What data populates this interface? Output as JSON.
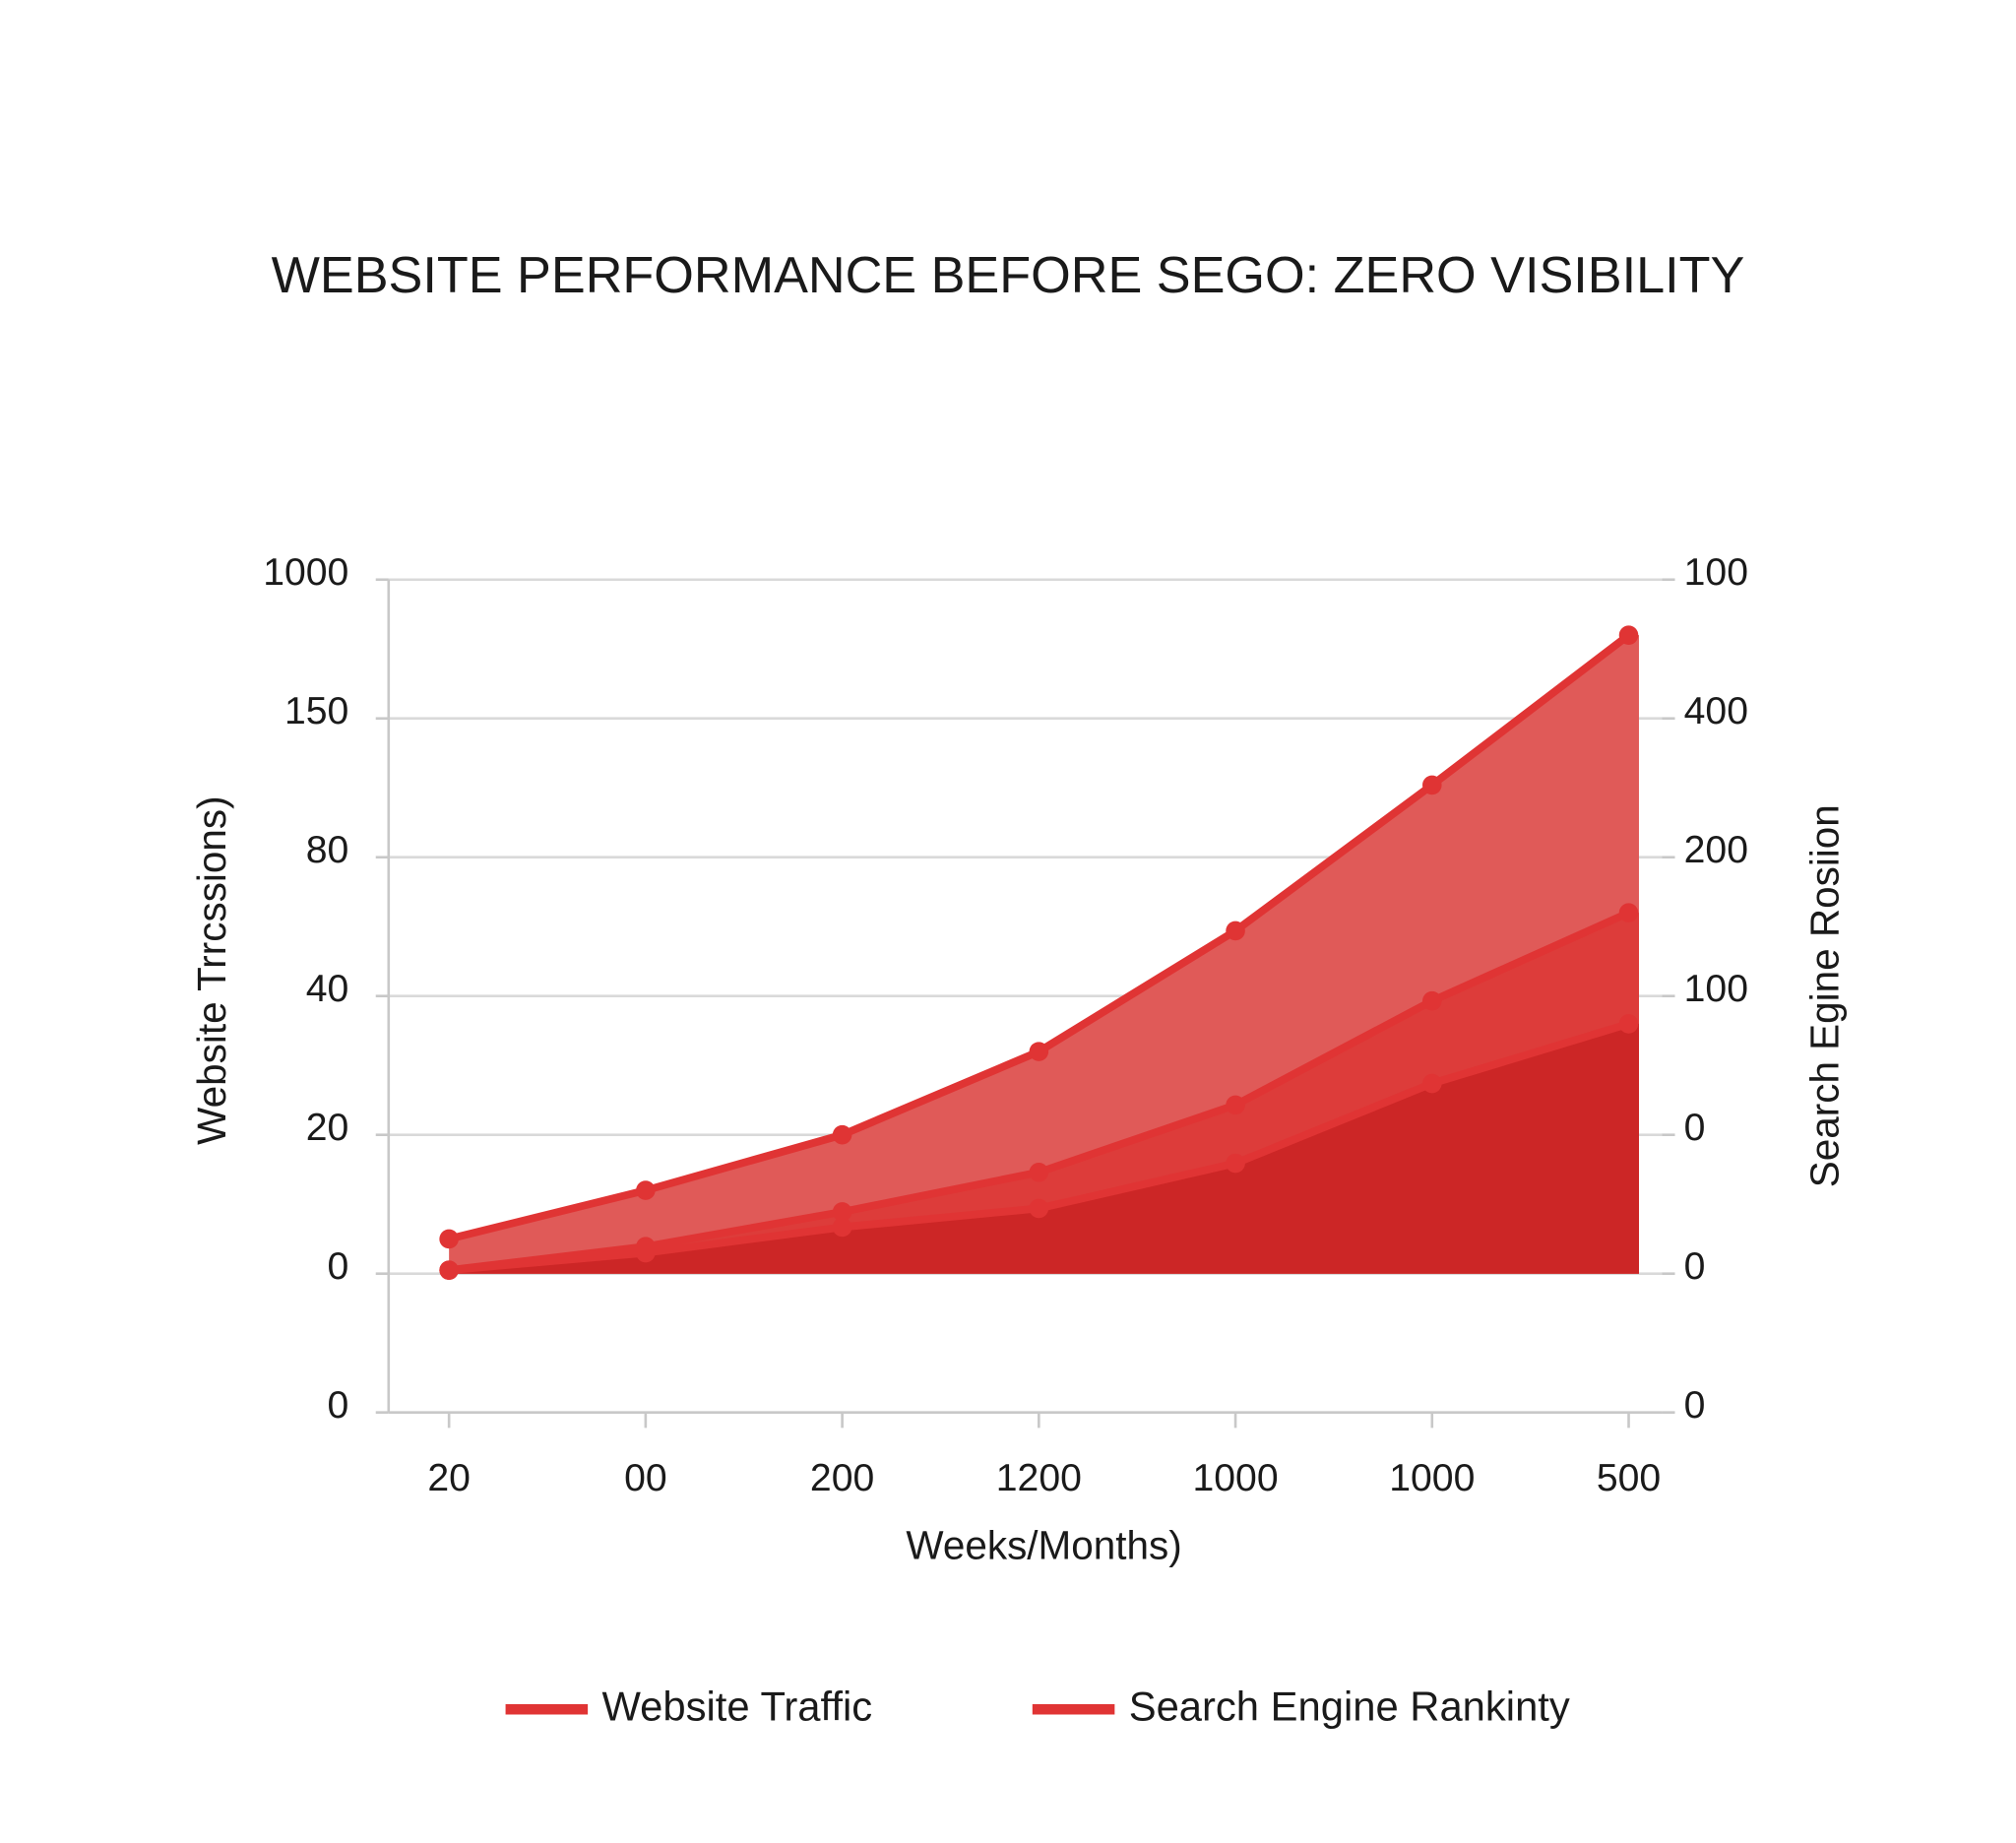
{
  "chart_data": {
    "type": "area",
    "title": "WEBSITE PERFORMANCE BEFORE SEGO: ZERO VISIBILITY",
    "x_label": "Weeks/Months)",
    "y_label": "Website Trrcssions)",
    "y2_label": "Search Egine Rosiion",
    "categories": [
      "20",
      "00",
      "200",
      "1200",
      "1000",
      "1000",
      "500"
    ],
    "series": [
      {
        "name": "Website Traffic",
        "color": "#e03434",
        "fill": "#e05a58",
        "values": [
          5,
          12,
          20,
          32,
          49.4,
          70.4,
          92
        ]
      },
      {
        "name": "Search Engine Rankinty",
        "color": "#e03434",
        "fill": "#dd3c3a",
        "values": [
          0.5,
          3.9,
          8.9,
          14.6,
          24.3,
          39.3,
          52
        ]
      },
      {
        "color": "#e03434",
        "fill": "#cc2626",
        "values": [
          0.5,
          3,
          6.7,
          9.4,
          15.9,
          27.4,
          36
        ]
      }
    ],
    "ylim": [
      -20,
      100
    ],
    "yticks": [
      {
        "value": -20,
        "label": "0"
      },
      0,
      20,
      40,
      {
        "value": 60,
        "label": "80"
      },
      {
        "value": 80,
        "label": "150"
      },
      {
        "value": 100,
        "label": "1000"
      }
    ],
    "y2lim": [
      -20,
      100
    ],
    "y2ticks": [
      {
        "value": -20,
        "label": "0"
      },
      0,
      {
        "value": 20,
        "label": "0"
      },
      {
        "value": 40,
        "label": "100"
      },
      {
        "value": 60,
        "label": "200"
      },
      {
        "value": 80,
        "label": "400"
      },
      {
        "value": 100,
        "label": "100"
      }
    ],
    "grid": true
  }
}
